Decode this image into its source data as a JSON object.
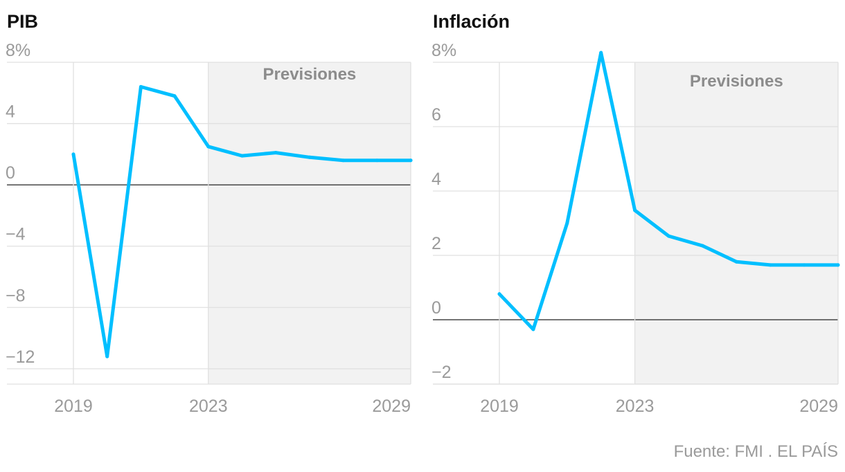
{
  "source": "Fuente: FMI . EL PAÍS",
  "colors": {
    "line": "#00bfff",
    "forecast_band": "#f2f2f2",
    "grid": "#e0e0e0",
    "zero": "#222222"
  },
  "chart_data": [
    {
      "type": "line",
      "title": "PIB",
      "x": [
        2019,
        2020,
        2021,
        2022,
        2023,
        2024,
        2025,
        2026,
        2027,
        2028,
        2029
      ],
      "y": [
        2.0,
        -11.2,
        6.4,
        5.8,
        2.5,
        1.9,
        2.1,
        1.8,
        1.6,
        1.6,
        1.6
      ],
      "ylim": [
        -13,
        8
      ],
      "yticks": [
        8,
        4,
        0,
        -4,
        -8,
        -12
      ],
      "ytick_labels": [
        "8%",
        "4",
        "0",
        "−4",
        "−8",
        "−12"
      ],
      "xticks": [
        2019,
        2023,
        2029
      ],
      "xtick_labels": [
        "2019",
        "2023",
        "2029"
      ],
      "forecast_from": 2023,
      "forecast_label": "Previsiones",
      "grid": true
    },
    {
      "type": "line",
      "title": "Inflación",
      "x": [
        2019,
        2020,
        2021,
        2022,
        2023,
        2024,
        2025,
        2026,
        2027,
        2028,
        2029
      ],
      "y": [
        0.8,
        -0.3,
        3.0,
        8.3,
        3.4,
        2.6,
        2.3,
        1.8,
        1.7,
        1.7,
        1.7
      ],
      "ylim": [
        -2,
        8
      ],
      "yticks": [
        8,
        6,
        4,
        2,
        0,
        -2
      ],
      "ytick_labels": [
        "8%",
        "6",
        "4",
        "2",
        "0",
        "−2"
      ],
      "xticks": [
        2019,
        2023,
        2029
      ],
      "xtick_labels": [
        "2019",
        "2023",
        "2029"
      ],
      "forecast_from": 2023,
      "forecast_label": "Previsiones",
      "grid": true
    }
  ]
}
